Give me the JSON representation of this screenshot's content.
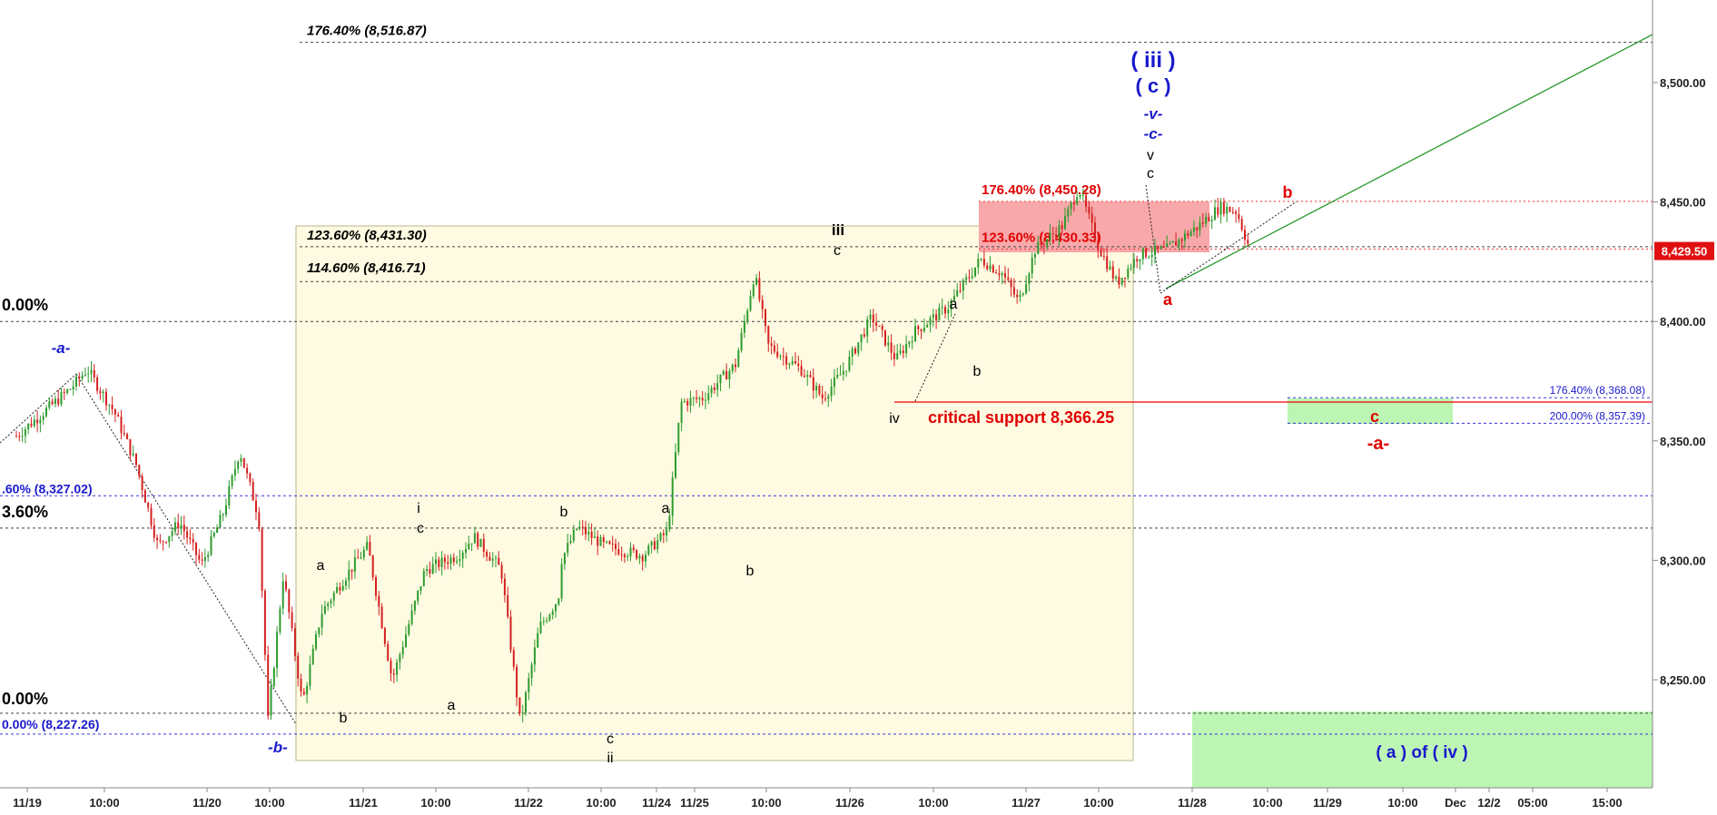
{
  "chart_data": {
    "type": "candlestick",
    "price_axis": {
      "range": [
        8195,
        8540
      ],
      "ticks": [
        "8,250.00",
        "8,300.00",
        "8,350.00",
        "8,400.00",
        "8,450.00",
        "8,500.00"
      ],
      "tick_values": [
        8250,
        8300,
        8350,
        8400,
        8450,
        8500
      ]
    },
    "time_axis": {
      "labels": [
        "11/19",
        "10:00",
        "11/20",
        "10:00",
        "11/21",
        "10:00",
        "11/22",
        "10:00",
        "11/24",
        "11/25",
        "10:00",
        "11/26",
        "10:00",
        "11/27",
        "10:00",
        "11/28",
        "10:00",
        "11/29",
        "10:00",
        "Dec",
        "12/2",
        "05:00",
        "15:00"
      ]
    },
    "last_price": {
      "label": "8,429.50",
      "value": 8429.5
    },
    "price_path": [
      [
        0,
        8352
      ],
      [
        1.0,
        8372
      ],
      [
        1.3,
        8380
      ],
      [
        1.8,
        8362
      ],
      [
        2.2,
        8340
      ],
      [
        2.6,
        8306
      ],
      [
        3.0,
        8316
      ],
      [
        3.4,
        8298
      ],
      [
        3.8,
        8320
      ],
      [
        4.1,
        8346
      ],
      [
        4.45,
        8318
      ],
      [
        4.62,
        8233
      ],
      [
        4.9,
        8294
      ],
      [
        5.25,
        8240
      ],
      [
        5.6,
        8278
      ],
      [
        6.0,
        8292
      ],
      [
        6.45,
        8306
      ],
      [
        6.9,
        8250
      ],
      [
        7.5,
        8296
      ],
      [
        8.1,
        8302
      ],
      [
        8.4,
        8310
      ],
      [
        8.9,
        8296
      ],
      [
        9.25,
        8232
      ],
      [
        9.6,
        8272
      ],
      [
        9.95,
        8284
      ],
      [
        10.0,
        8300
      ],
      [
        10.3,
        8314
      ],
      [
        10.8,
        8306
      ],
      [
        11.5,
        8302
      ],
      [
        11.95,
        8312
      ],
      [
        12.2,
        8366
      ],
      [
        12.6,
        8368
      ],
      [
        13.2,
        8382
      ],
      [
        13.55,
        8420
      ],
      [
        13.8,
        8390
      ],
      [
        14.4,
        8380
      ],
      [
        14.8,
        8368
      ],
      [
        15.2,
        8380
      ],
      [
        15.7,
        8402
      ],
      [
        16.15,
        8384
      ],
      [
        16.5,
        8396
      ],
      [
        17.1,
        8406
      ],
      [
        17.7,
        8426
      ],
      [
        18.1,
        8420
      ],
      [
        18.4,
        8408
      ],
      [
        18.7,
        8430
      ],
      [
        19.2,
        8440
      ],
      [
        19.5,
        8456
      ],
      [
        19.85,
        8432
      ],
      [
        20.2,
        8416
      ],
      [
        20.6,
        8428
      ],
      [
        21.1,
        8430
      ],
      [
        21.7,
        8440
      ],
      [
        22.1,
        8448
      ],
      [
        22.4,
        8446
      ],
      [
        22.65,
        8429.5
      ]
    ],
    "fib_levels": [
      {
        "label": "176.40% (8,516.87)",
        "value": 8516.87,
        "color": "#000000"
      },
      {
        "label": "123.60% (8,431.30)",
        "value": 8431.3,
        "color": "#000000"
      },
      {
        "label": "114.60% (8,416.71)",
        "value": 8416.71,
        "color": "#000000"
      },
      {
        "label": "0.00%",
        "value": 8400,
        "color": "#000000"
      },
      {
        "label": "3.60%",
        "value": 8313.5,
        "color": "#000000"
      },
      {
        "label": ".60% (8,327.02)",
        "value": 8327.02,
        "color": "#1a1acc"
      },
      {
        "label": "0.00%",
        "value": 8236,
        "color": "#000000"
      },
      {
        "label": "0.00% (8,227.26)",
        "value": 8227.26,
        "color": "#1a1acc"
      },
      {
        "label": "176.40% (8,450.28)",
        "value": 8450.28,
        "color": "#e00000"
      },
      {
        "label": "123.60% (8,430.33)",
        "value": 8430.33,
        "color": "#e00000"
      },
      {
        "label": "176.40% (8,368.08)",
        "value": 8368.08,
        "color": "#1a1acc"
      },
      {
        "label": "200.00% (8,357.39)",
        "value": 8357.39,
        "color": "#1a1acc"
      }
    ],
    "critical_support": {
      "label": "critical support 8,366.25",
      "value": 8366.25
    },
    "wave_labels": [
      {
        "text": "-a-",
        "color": "#1a1acc",
        "style": "italic"
      },
      {
        "text": "-b-",
        "color": "#1a1acc",
        "style": "italic"
      },
      {
        "text": "a",
        "color": "#000000"
      },
      {
        "text": "b",
        "color": "#000000"
      },
      {
        "text": "i",
        "color": "#000000"
      },
      {
        "text": "c",
        "color": "#000000"
      },
      {
        "text": "a",
        "color": "#000000"
      },
      {
        "text": "b",
        "color": "#000000"
      },
      {
        "text": "c",
        "color": "#000000"
      },
      {
        "text": "ii",
        "color": "#000000"
      },
      {
        "text": "a",
        "color": "#000000"
      },
      {
        "text": "b",
        "color": "#000000"
      },
      {
        "text": "iii",
        "color": "#000000"
      },
      {
        "text": "c",
        "color": "#000000"
      },
      {
        "text": "iv",
        "color": "#000000"
      },
      {
        "text": "a",
        "color": "#000000"
      },
      {
        "text": "b",
        "color": "#000000"
      },
      {
        "text": "( iii )",
        "color": "#1a1acc"
      },
      {
        "text": "( c )",
        "color": "#1a1acc"
      },
      {
        "text": "-v-",
        "color": "#1a1acc",
        "style": "italic"
      },
      {
        "text": "-c-",
        "color": "#1a1acc",
        "style": "italic"
      },
      {
        "text": "v",
        "color": "#000000"
      },
      {
        "text": "c",
        "color": "#000000"
      },
      {
        "text": "a",
        "color": "#e00000"
      },
      {
        "text": "b",
        "color": "#e00000"
      },
      {
        "text": "c",
        "color": "#e00000"
      },
      {
        "text": "-a-",
        "color": "#e00000"
      },
      {
        "text": "( a ) of ( iv )",
        "color": "#1a1acc"
      }
    ],
    "colors": {
      "up": "#2e9b2e",
      "down": "#d42020",
      "yellow_box": "#fffbe2",
      "red_zone": "#f8a8aa",
      "green_zone": "#bdf5b4",
      "trendline": "#2a9a2a"
    }
  }
}
